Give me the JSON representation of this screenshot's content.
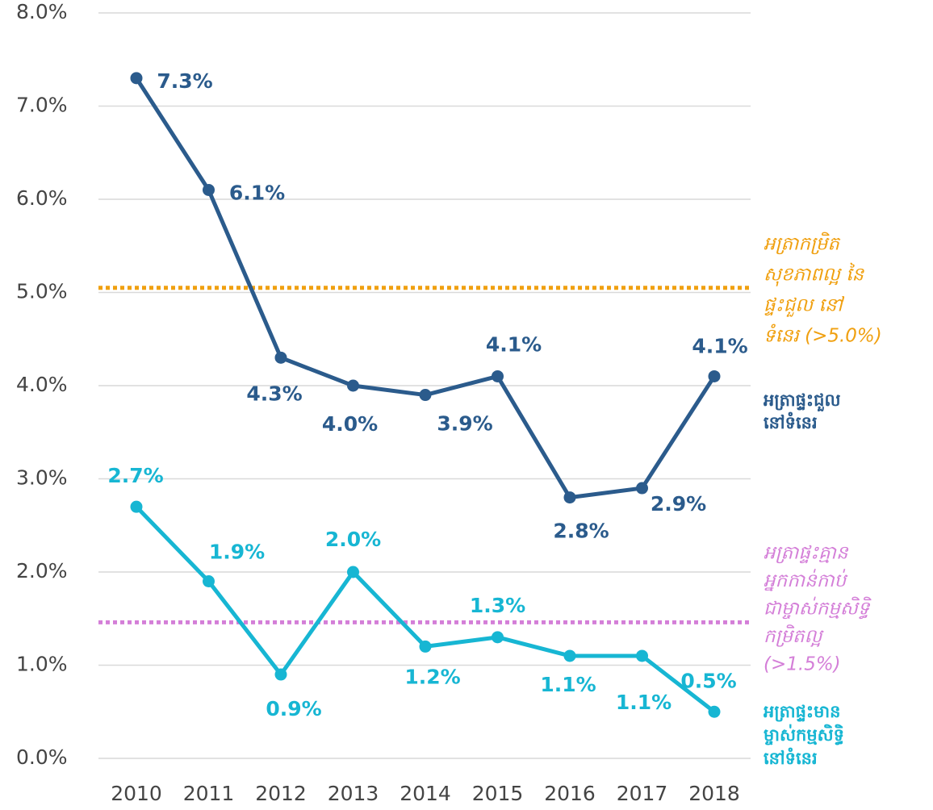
{
  "chart_data": {
    "type": "line",
    "categories": [
      "2010",
      "2011",
      "2012",
      "2013",
      "2014",
      "2015",
      "2016",
      "2017",
      "2018"
    ],
    "series": [
      {
        "name": [
          "អត្រាផ្ទះជួល",
          "នៅទំនេរ"
        ],
        "color": "#2b5b8c",
        "values": [
          7.3,
          6.1,
          4.3,
          4.0,
          3.9,
          4.1,
          2.8,
          2.9,
          4.1
        ],
        "value_labels": [
          "7.3%",
          "6.1%",
          "4.3%",
          "4.0%",
          "3.9%",
          "4.1%",
          "2.8%",
          "2.9%",
          "4.1%"
        ]
      },
      {
        "name": [
          "អត្រាផ្ទះមាន",
          "ម្ចាស់កម្មសិទ្ធិ",
          "នៅទំនេរ"
        ],
        "color": "#17b6d3",
        "values": [
          2.7,
          1.9,
          0.9,
          2.0,
          1.2,
          1.3,
          1.1,
          1.1,
          0.5
        ],
        "value_labels": [
          "2.7%",
          "1.9%",
          "0.9%",
          "2.0%",
          "1.2%",
          "1.3%",
          "1.1%",
          "1.1%",
          "0.5%"
        ]
      }
    ],
    "reference_lines": [
      {
        "value": 5.05,
        "color": "#f0a010",
        "label": [
          "អត្រាកម្រិត",
          "សុខភាពល្អ នៃ",
          "ផ្ទះជួល នៅ",
          "ទំនេរ (>5.0%)"
        ]
      },
      {
        "value": 1.46,
        "color": "#d47fd8",
        "label": [
          "អត្រាផ្ទះគ្មាន",
          "អ្នកកាន់កាប់",
          "ជាម្ចាស់កម្មសិទ្ធិ",
          "កម្រិតល្អ",
          "(>1.5%)"
        ]
      }
    ],
    "ylim": [
      0,
      8
    ],
    "yticks": [
      {
        "value": 0,
        "label": "0.0%"
      },
      {
        "value": 1,
        "label": "1.0%"
      },
      {
        "value": 2,
        "label": "2.0%"
      },
      {
        "value": 3,
        "label": "3.0%"
      },
      {
        "value": 4,
        "label": "4.0%"
      },
      {
        "value": 5,
        "label": "5.0%"
      },
      {
        "value": 6,
        "label": "6.0%"
      },
      {
        "value": 7,
        "label": "7.0%"
      },
      {
        "value": 8,
        "label": "8.0%"
      }
    ],
    "grid": true
  }
}
